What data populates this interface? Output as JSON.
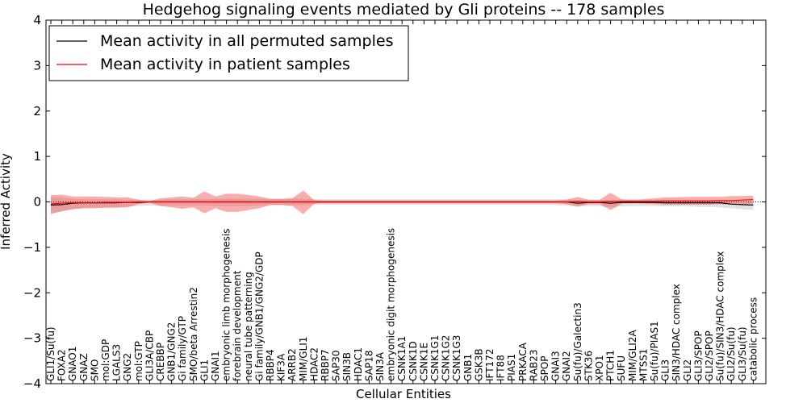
{
  "chart_data": {
    "type": "line",
    "title": "Hedgehog signaling events mediated by Gli proteins -- 178 samples",
    "xlabel": "Cellular Entities",
    "ylabel": "Inferred Activity",
    "ylim": [
      -4,
      4
    ],
    "yticks": [
      -4,
      -3,
      -2,
      -1,
      0,
      1,
      2,
      3,
      4
    ],
    "ytick_labels": [
      "−4",
      "−3",
      "−2",
      "−1",
      "0",
      "1",
      "2",
      "3",
      "4"
    ],
    "legend": {
      "placement": "top-left",
      "entries": [
        {
          "name": "Mean activity in all permuted samples",
          "color": "#000000"
        },
        {
          "name": "Mean activity in patient samples",
          "color": "#ff0000"
        }
      ]
    },
    "categories": [
      "GLI1/Su(fu)",
      "FOXA2",
      "GNAO1",
      "GNAZ",
      "SMO",
      "mol:GDP",
      "LGALS3",
      "GNG2",
      "mol:GTP",
      "GLI3A/CBP",
      "CREBBP",
      "GNB1/GNG2",
      "Gi family/GTP",
      "SMO/beta Arrestin2",
      "GLI1",
      "GNAI1",
      "embryonic limb morphogenesis",
      "forebrain development",
      "neural tube patterning",
      "Gi family/GNB1/GNG2/GDP",
      "RBBP4",
      "KIF3A",
      "ARRB2",
      "MIM/GLI1",
      "HDAC2",
      "RBBP7",
      "SAP30",
      "SIN3B",
      "HDAC1",
      "SAP18",
      "SIN3A",
      "embryonic digit morphogenesis",
      "CSNK1A1",
      "CSNK1D",
      "CSNK1E",
      "CSNK1G1",
      "CSNK1G2",
      "CSNK1G3",
      "GNB1",
      "GSK3B",
      "IFT172",
      "IFT88",
      "PIAS1",
      "PRKACA",
      "RAB23",
      "SPOP",
      "GNAI3",
      "GNAI2",
      "Su(fu)/Galectin3",
      "STK36",
      "XPO1",
      "PTCH1",
      "SUFU",
      "MIM/GLI2A",
      "MTSS1",
      "Su(fu)/PIAS1",
      "GLI3",
      "SIN3/HDAC complex",
      "GLI2",
      "GLI3/SPOP",
      "GLI2/SPOP",
      "Su(fu)/SIN3/HDAC complex",
      "GLI2/Su(fu)",
      "GLI3/Su(fu)",
      "catabolic process"
    ],
    "series": [
      {
        "name": "Mean activity in all permuted samples",
        "color": "#000000",
        "values": [
          -0.07,
          -0.06,
          -0.03,
          -0.02,
          -0.02,
          -0.02,
          -0.02,
          -0.01,
          -0.01,
          0.0,
          0.0,
          0.0,
          0.0,
          0.0,
          0.0,
          0.0,
          0.0,
          0.0,
          0.0,
          0.0,
          0.0,
          0.0,
          0.0,
          0.0,
          0.0,
          0.0,
          0.0,
          0.0,
          0.0,
          0.0,
          0.0,
          0.0,
          0.0,
          0.0,
          0.0,
          0.0,
          0.0,
          0.0,
          0.0,
          0.0,
          0.0,
          0.0,
          0.0,
          0.0,
          0.0,
          0.0,
          0.0,
          0.0,
          -0.03,
          -0.01,
          -0.01,
          -0.03,
          -0.01,
          -0.01,
          -0.01,
          -0.01,
          -0.02,
          -0.02,
          -0.02,
          -0.02,
          -0.02,
          -0.02,
          -0.05,
          -0.06,
          -0.07
        ],
        "band_upper": [
          0.1,
          0.1,
          0.07,
          0.06,
          0.06,
          0.06,
          0.06,
          0.05,
          0.05,
          0.05,
          0.05,
          0.06,
          0.06,
          0.06,
          0.06,
          0.07,
          0.07,
          0.07,
          0.07,
          0.07,
          0.07,
          0.07,
          0.07,
          0.07,
          0.06,
          0.06,
          0.06,
          0.06,
          0.06,
          0.06,
          0.06,
          0.06,
          0.06,
          0.06,
          0.06,
          0.06,
          0.06,
          0.06,
          0.06,
          0.06,
          0.06,
          0.06,
          0.06,
          0.06,
          0.06,
          0.06,
          0.06,
          0.06,
          0.04,
          0.05,
          0.05,
          0.04,
          0.05,
          0.05,
          0.05,
          0.05,
          0.04,
          0.04,
          0.04,
          0.04,
          0.04,
          0.04,
          0.02,
          0.01,
          0.0
        ],
        "band_lower": [
          -0.24,
          -0.22,
          -0.16,
          -0.14,
          -0.13,
          -0.12,
          -0.12,
          -0.1,
          -0.09,
          -0.08,
          -0.08,
          -0.08,
          -0.08,
          -0.08,
          -0.08,
          -0.09,
          -0.09,
          -0.09,
          -0.09,
          -0.08,
          -0.07,
          -0.07,
          -0.07,
          -0.07,
          -0.06,
          -0.06,
          -0.06,
          -0.06,
          -0.06,
          -0.06,
          -0.06,
          -0.06,
          -0.06,
          -0.06,
          -0.06,
          -0.06,
          -0.06,
          -0.06,
          -0.06,
          -0.06,
          -0.06,
          -0.06,
          -0.06,
          -0.06,
          -0.06,
          -0.06,
          -0.07,
          -0.08,
          -0.11,
          -0.09,
          -0.09,
          -0.12,
          -0.1,
          -0.09,
          -0.09,
          -0.09,
          -0.1,
          -0.1,
          -0.1,
          -0.11,
          -0.11,
          -0.12,
          -0.14,
          -0.16,
          -0.18
        ]
      },
      {
        "name": "Mean activity in patient samples",
        "color": "#ff0000",
        "values": [
          -0.04,
          -0.03,
          -0.02,
          -0.02,
          -0.02,
          -0.01,
          -0.01,
          -0.01,
          0.0,
          0.0,
          0.0,
          0.0,
          0.0,
          0.0,
          0.0,
          0.0,
          0.0,
          0.0,
          0.0,
          0.0,
          0.0,
          0.0,
          0.0,
          0.0,
          0.0,
          0.0,
          0.0,
          0.0,
          0.0,
          0.0,
          0.0,
          0.0,
          0.0,
          0.0,
          0.0,
          0.0,
          0.0,
          0.0,
          0.0,
          0.0,
          0.0,
          0.0,
          0.0,
          0.0,
          0.0,
          0.0,
          0.0,
          0.0,
          0.01,
          0.0,
          0.0,
          0.01,
          0.01,
          0.01,
          0.01,
          0.01,
          0.02,
          0.02,
          0.02,
          0.02,
          0.02,
          0.03,
          0.03,
          0.04,
          0.05
        ],
        "band_upper": [
          0.15,
          0.16,
          0.12,
          0.12,
          0.12,
          0.11,
          0.1,
          0.1,
          0.05,
          0.02,
          0.08,
          0.1,
          0.12,
          0.09,
          0.23,
          0.12,
          0.18,
          0.18,
          0.15,
          0.12,
          0.07,
          0.07,
          0.08,
          0.25,
          0.04,
          0.03,
          0.03,
          0.03,
          0.03,
          0.03,
          0.03,
          0.03,
          0.03,
          0.03,
          0.03,
          0.03,
          0.03,
          0.03,
          0.03,
          0.03,
          0.03,
          0.03,
          0.03,
          0.03,
          0.03,
          0.03,
          0.03,
          0.05,
          0.11,
          0.05,
          0.05,
          0.2,
          0.06,
          0.05,
          0.06,
          0.08,
          0.1,
          0.1,
          0.11,
          0.11,
          0.11,
          0.11,
          0.13,
          0.13,
          0.14
        ],
        "band_lower": [
          -0.27,
          -0.2,
          -0.16,
          -0.14,
          -0.14,
          -0.13,
          -0.13,
          -0.12,
          -0.05,
          -0.02,
          -0.09,
          -0.12,
          -0.15,
          -0.12,
          -0.25,
          -0.14,
          -0.22,
          -0.22,
          -0.18,
          -0.14,
          -0.07,
          -0.07,
          -0.09,
          -0.27,
          -0.04,
          -0.03,
          -0.03,
          -0.03,
          -0.03,
          -0.03,
          -0.03,
          -0.03,
          -0.03,
          -0.03,
          -0.03,
          -0.03,
          -0.03,
          -0.03,
          -0.03,
          -0.03,
          -0.03,
          -0.03,
          -0.03,
          -0.03,
          -0.03,
          -0.03,
          -0.03,
          -0.05,
          -0.1,
          -0.05,
          -0.05,
          -0.18,
          -0.04,
          -0.03,
          -0.04,
          -0.05,
          -0.06,
          -0.06,
          -0.06,
          -0.06,
          -0.06,
          -0.05,
          -0.05,
          -0.05,
          -0.04
        ]
      }
    ]
  }
}
